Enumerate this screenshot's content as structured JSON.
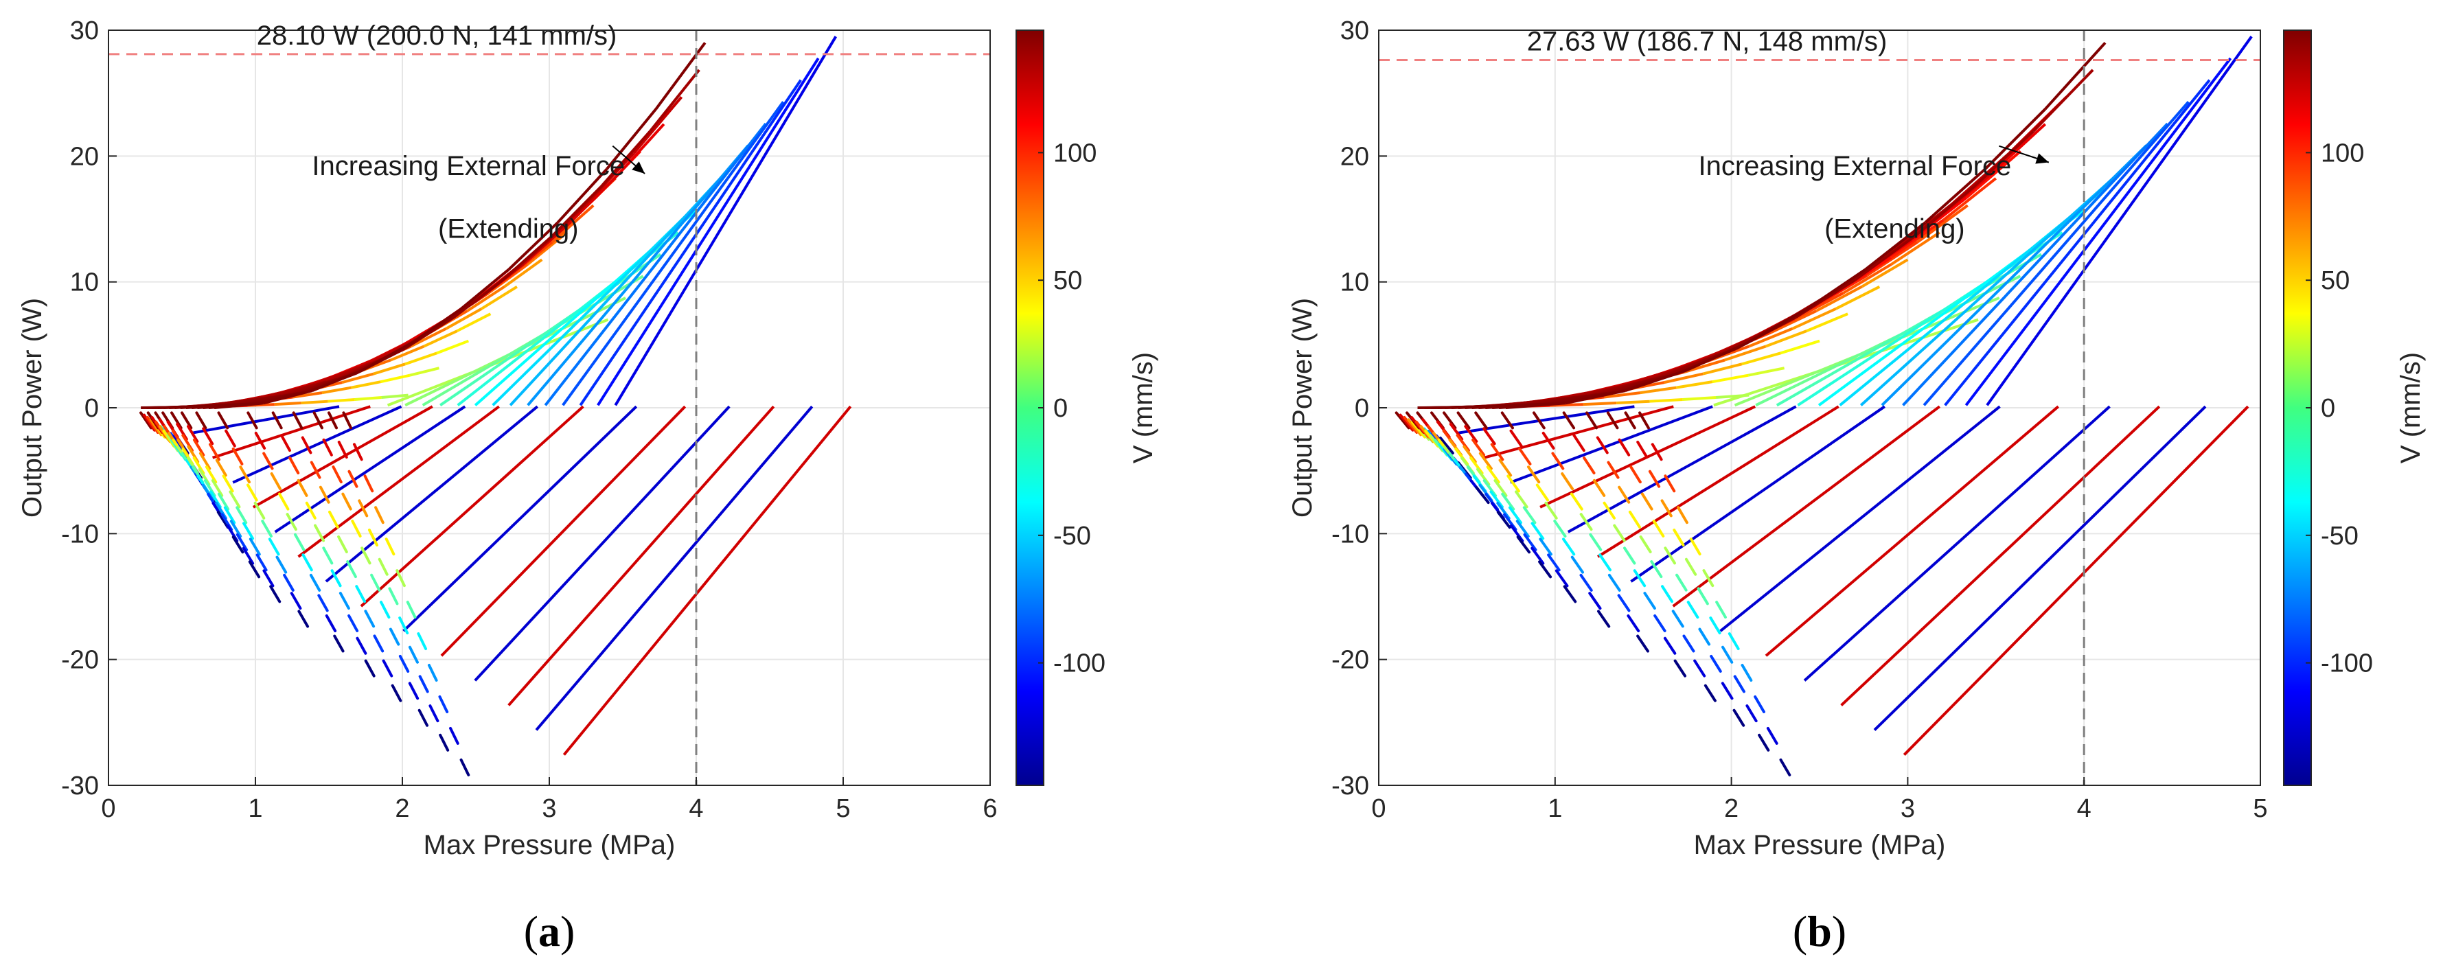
{
  "figure": {
    "panel_labels": [
      {
        "open": "(",
        "letter": "a",
        "close": ")"
      },
      {
        "open": "(",
        "letter": "b",
        "close": ")"
      }
    ]
  },
  "chart_data": [
    {
      "type": "line",
      "panel": "a",
      "title": "",
      "xlabel": "Max Pressure (MPa)",
      "ylabel": "Output Power (W)",
      "xlim": [
        0,
        6
      ],
      "ylim": [
        -30,
        30
      ],
      "xticks": [
        0,
        1,
        2,
        3,
        4,
        5,
        6
      ],
      "yticks": [
        -30,
        -20,
        -10,
        0,
        10,
        20,
        30
      ],
      "grid": true,
      "colorbar": {
        "label": "V (mm/s)",
        "min": -148,
        "max": 148,
        "ticks": [
          -100,
          -50,
          0,
          50,
          100
        ],
        "colormap": "jet"
      },
      "max_power_line": {
        "y": 28.1,
        "label": "28.10 W (200.0 N, 141 mm/s)",
        "color": "#f08080"
      },
      "pressure_limit_line": {
        "x": 4,
        "color": "#808080"
      },
      "annotation": {
        "line1": "Increasing External Force",
        "line2": "(Extending)",
        "arrow_to": [
          3.65,
          18.6
        ]
      },
      "families": {
        "count": 14,
        "speed_range": [
          -148,
          148
        ],
        "pressure_start": 0.22,
        "pressure_end": 5.0,
        "power_min": -29.5,
        "power_max": 29.5
      }
    },
    {
      "type": "line",
      "panel": "b",
      "title": "",
      "xlabel": "Max Pressure (MPa)",
      "ylabel": "Output Power (W)",
      "xlim": [
        0,
        5
      ],
      "ylim": [
        -30,
        30
      ],
      "xticks": [
        0,
        1,
        2,
        3,
        4,
        5
      ],
      "yticks": [
        -30,
        -20,
        -10,
        0,
        10,
        20,
        30
      ],
      "grid": true,
      "colorbar": {
        "label": "V (mm/s)",
        "min": -148,
        "max": 148,
        "ticks": [
          -100,
          -50,
          0,
          50,
          100
        ],
        "colormap": "jet"
      },
      "max_power_line": {
        "y": 27.63,
        "label": "27.63 W (186.7 N, 148 mm/s)",
        "color": "#f08080"
      },
      "pressure_limit_line": {
        "x": 4,
        "color": "#808080"
      },
      "annotation": {
        "line1": "Increasing External Force",
        "line2": "(Extending)",
        "arrow_to": [
          3.8,
          19.5
        ]
      },
      "families": {
        "count": 14,
        "speed_range": [
          -148,
          148
        ],
        "pressure_start": 0.22,
        "pressure_end": 4.95,
        "power_min": -29.5,
        "power_max": 29.5
      }
    }
  ]
}
